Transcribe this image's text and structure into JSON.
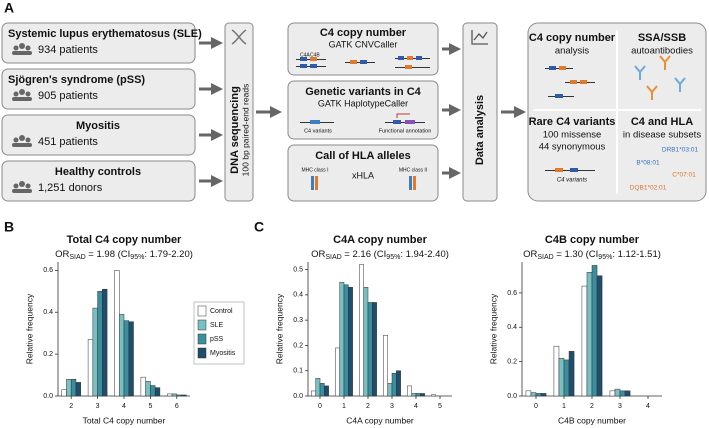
{
  "panel_a": {
    "label": "A",
    "cohorts": [
      {
        "name": "Systemic lupus erythematosus (SLE)",
        "count": "934 patients"
      },
      {
        "name": "Sjögren's syndrome (pSS)",
        "count": "905 patients"
      },
      {
        "name": "Myositis",
        "count": "451 patients"
      },
      {
        "name": "Healthy controls",
        "count": "1,251 donors"
      }
    ],
    "sequencing": {
      "title": "DNA sequencing",
      "subtitle": "100 bp paired-end reads"
    },
    "methods": [
      {
        "title": "C4 copy number",
        "tool": "GATK CNVCaller",
        "labels": [
          "C4A",
          "C4B"
        ]
      },
      {
        "title": "Genetic variants in C4",
        "tool": "GATK HaplotypeCaller",
        "labels": [
          "C4 variants",
          "Functional annotation"
        ]
      },
      {
        "title": "Call of HLA alleles",
        "tool": "xHLA",
        "labels": [
          "MHC class I",
          "MHC class II"
        ]
      }
    ],
    "analysis": "Data analysis",
    "results": [
      {
        "title": "C4 copy number",
        "lines": [
          "analysis"
        ]
      },
      {
        "title": "SSA/SSB",
        "lines": [
          "autoantibodies"
        ]
      },
      {
        "title": "Rare C4 variants",
        "lines": [
          "100 missense",
          "44 synonymous",
          "C4 variants"
        ]
      },
      {
        "title": "C4 and HLA",
        "lines": [
          "in disease subsets",
          "DRB1*03:01",
          "B*08:01",
          "C*07:01",
          "DQB1*02:01"
        ]
      }
    ]
  },
  "chart_data": [
    {
      "type": "bar",
      "panel_label": "B",
      "title": "Total C4 copy number",
      "subtitle": [
        "OR",
        "SIAD",
        " = 1.98 (CI",
        "95%",
        ": 1.79-2.20)"
      ],
      "x_label": "Total C4 copy number",
      "y_label": "Relative frequency",
      "categories": [
        "2",
        "3",
        "4",
        "5",
        "6"
      ],
      "series": [
        {
          "name": "Control",
          "color": "#ffffff",
          "values": [
            0.03,
            0.27,
            0.6,
            0.09,
            0.01
          ]
        },
        {
          "name": "SLE",
          "color": "#79c0c2",
          "values": [
            0.08,
            0.42,
            0.39,
            0.07,
            0.01
          ]
        },
        {
          "name": "pSS",
          "color": "#3a8e9e",
          "values": [
            0.08,
            0.5,
            0.36,
            0.05,
            0.005
          ]
        },
        {
          "name": "Myositis",
          "color": "#1f4d6b",
          "values": [
            0.065,
            0.51,
            0.355,
            0.04,
            0.005
          ]
        }
      ],
      "ylim": [
        0,
        0.64
      ],
      "yticks": [
        {
          "value": 0,
          "label": "0.0"
        },
        0.2,
        0.4,
        0.6
      ],
      "legend": "right"
    },
    {
      "type": "bar",
      "panel_label": "C",
      "title": "C4A copy number",
      "subtitle": [
        "OR",
        "SIAD",
        " = 2.16 (CI",
        "95%",
        ": 1.94-2.40)"
      ],
      "x_label": "C4A copy number",
      "y_label": "Relative frequency",
      "categories": [
        "0",
        "1",
        "2",
        "3",
        "4",
        "5"
      ],
      "series": [
        {
          "name": "Control",
          "color": "#ffffff",
          "values": [
            0.02,
            0.19,
            0.52,
            0.24,
            0.04,
            0.005
          ]
        },
        {
          "name": "SLE",
          "color": "#79c0c2",
          "values": [
            0.07,
            0.45,
            0.43,
            0.05,
            0.01,
            0
          ]
        },
        {
          "name": "pSS",
          "color": "#3a8e9e",
          "values": [
            0.05,
            0.44,
            0.37,
            0.09,
            0.01,
            0
          ]
        },
        {
          "name": "Myositis",
          "color": "#1f4d6b",
          "values": [
            0.04,
            0.43,
            0.37,
            0.1,
            0.01,
            0
          ]
        }
      ],
      "ylim": [
        0,
        0.53
      ],
      "yticks": [
        {
          "value": 0,
          "label": "0.0"
        },
        0.1,
        0.2,
        0.3,
        0.4,
        0.5
      ]
    },
    {
      "type": "bar",
      "title": "C4B copy number",
      "subtitle": [
        "OR",
        "SIAD",
        " = 1.30 (CI",
        "95%",
        ": 1.12-1.51)"
      ],
      "x_label": "C4B copy number",
      "y_label": "Relative frequency",
      "categories": [
        "0",
        "1",
        "2",
        "3",
        "4"
      ],
      "series": [
        {
          "name": "Control",
          "color": "#ffffff",
          "values": [
            0.03,
            0.29,
            0.64,
            0.03,
            0
          ]
        },
        {
          "name": "SLE",
          "color": "#79c0c2",
          "values": [
            0.02,
            0.22,
            0.72,
            0.04,
            0
          ]
        },
        {
          "name": "pSS",
          "color": "#3a8e9e",
          "values": [
            0.015,
            0.21,
            0.76,
            0.03,
            0
          ]
        },
        {
          "name": "Myositis",
          "color": "#1f4d6b",
          "values": [
            0.015,
            0.26,
            0.7,
            0.03,
            0
          ]
        }
      ],
      "ylim": [
        0,
        0.78
      ],
      "yticks": [
        {
          "value": 0,
          "label": "0.0"
        },
        0.2,
        0.4,
        0.6
      ]
    }
  ]
}
